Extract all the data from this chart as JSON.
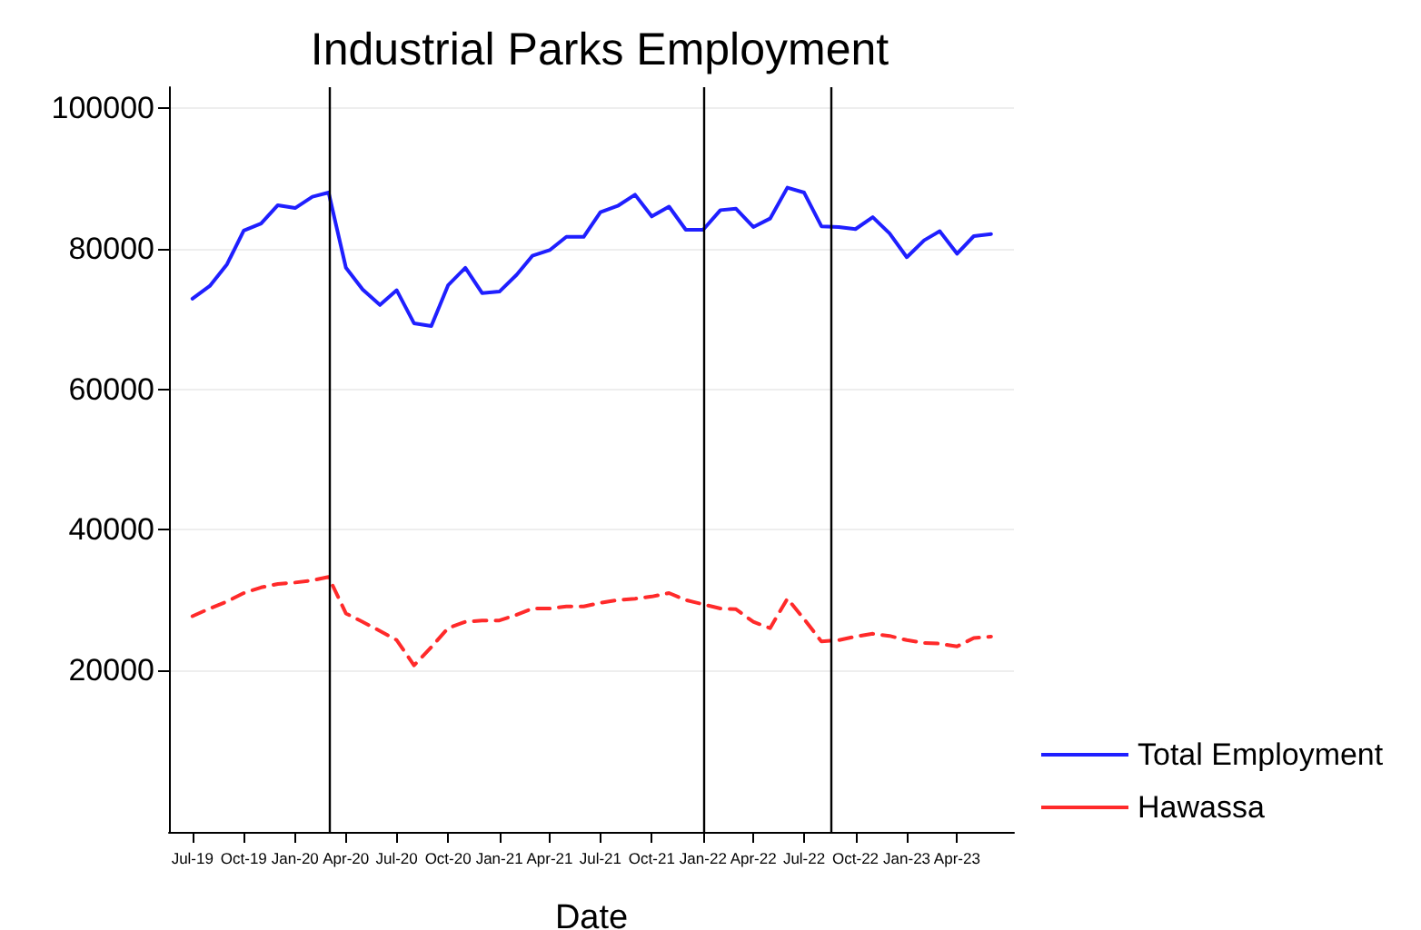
{
  "chart_data": {
    "type": "line",
    "title": "Industrial Parks Employment",
    "xlabel": "Date",
    "x": [
      "2019-07",
      "2019-08",
      "2019-09",
      "2019-10",
      "2019-11",
      "2019-12",
      "2020-01",
      "2020-02",
      "2020-03",
      "2020-04",
      "2020-05",
      "2020-06",
      "2020-07",
      "2020-08",
      "2020-09",
      "2020-10",
      "2020-11",
      "2020-12",
      "2021-01",
      "2021-02",
      "2021-03",
      "2021-04",
      "2021-05",
      "2021-06",
      "2021-07",
      "2021-08",
      "2021-09",
      "2021-10",
      "2021-11",
      "2021-12",
      "2022-01",
      "2022-02",
      "2022-03",
      "2022-04",
      "2022-05",
      "2022-06",
      "2022-07",
      "2022-08",
      "2022-09",
      "2022-10",
      "2022-11",
      "2022-12",
      "2023-01",
      "2023-02",
      "2023-03",
      "2023-04",
      "2023-05",
      "2023-06"
    ],
    "series": [
      {
        "name": "Total Employment",
        "color": "#1f1fff",
        "line_style": "solid",
        "values": [
          72900,
          74700,
          77800,
          82600,
          83600,
          86200,
          85800,
          87400,
          88000,
          77300,
          74200,
          72000,
          74100,
          69400,
          69000,
          74800,
          77300,
          73700,
          73900,
          76300,
          79000,
          79800,
          81700,
          81700,
          85200,
          86100,
          87700,
          84600,
          86000,
          82700,
          82700,
          85500,
          85700,
          83100,
          84300,
          88700,
          88000,
          83200,
          83100,
          82800,
          84500,
          82200,
          78800,
          81200,
          82500,
          79300,
          81800,
          82100
        ]
      },
      {
        "name": "Hawassa",
        "color": "#ff2a2a",
        "line_style": "dashed",
        "values": [
          27700,
          28800,
          29800,
          31000,
          31800,
          32300,
          32500,
          32800,
          33300,
          28100,
          26900,
          25600,
          24300,
          20700,
          23300,
          26000,
          26900,
          27100,
          27100,
          27900,
          28800,
          28800,
          29100,
          29100,
          29600,
          30000,
          30200,
          30500,
          31000,
          30000,
          29400,
          28800,
          28700,
          26900,
          26000,
          30200,
          27300,
          24100,
          24300,
          24800,
          25200,
          24900,
          24300,
          23900,
          23800,
          23400,
          24600,
          24800
        ]
      }
    ],
    "xlim": [
      "2019-05-20",
      "2023-07-12"
    ],
    "xticks": [
      {
        "value": "2019-07",
        "label": "Jul-19"
      },
      {
        "value": "2019-10",
        "label": "Oct-19"
      },
      {
        "value": "2020-01",
        "label": "Jan-20"
      },
      {
        "value": "2020-04",
        "label": "Apr-20"
      },
      {
        "value": "2020-07",
        "label": "Jul-20"
      },
      {
        "value": "2020-10",
        "label": "Oct-20"
      },
      {
        "value": "2021-01",
        "label": "Jan-21"
      },
      {
        "value": "2021-04",
        "label": "Apr-21"
      },
      {
        "value": "2021-07",
        "label": "Jul-21"
      },
      {
        "value": "2021-10",
        "label": "Oct-21"
      },
      {
        "value": "2022-01",
        "label": "Jan-22"
      },
      {
        "value": "2022-04",
        "label": "Apr-22"
      },
      {
        "value": "2022-07",
        "label": "Jul-22"
      },
      {
        "value": "2022-10",
        "label": "Oct-22"
      },
      {
        "value": "2023-01",
        "label": "Jan-23"
      },
      {
        "value": "2023-04",
        "label": "Apr-23"
      }
    ],
    "ylim": [
      -3000,
      103000
    ],
    "yticks": [
      20000,
      40000,
      60000,
      80000,
      100000
    ],
    "ref_lines": [
      {
        "axis": "x",
        "value": "2020-03-01",
        "color": "#000000"
      },
      {
        "axis": "x",
        "value": "2022-01-01",
        "color": "#000000"
      },
      {
        "axis": "x",
        "value": "2022-08-19",
        "color": "#000000"
      }
    ],
    "grid": "y",
    "legend": "right",
    "marker": "none"
  }
}
